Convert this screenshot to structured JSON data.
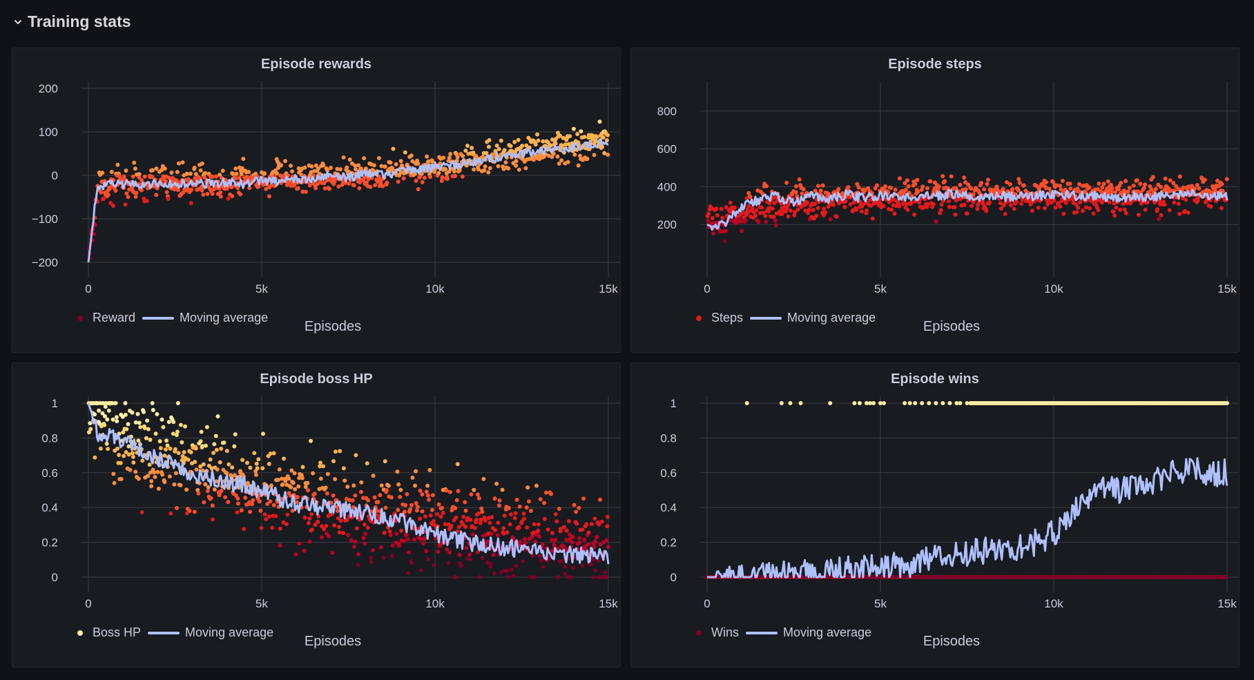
{
  "section": {
    "title": "Training stats"
  },
  "colors": {
    "background": "#111217",
    "panel": "#181b1f",
    "grid": "#3a3d44",
    "moving_average": "#aec0ff",
    "scale": [
      "#800026",
      "#bd0026",
      "#e31a1c",
      "#fc4e2a",
      "#fd8d3c",
      "#feb24c",
      "#fed976",
      "#ffeda0"
    ]
  },
  "panels": [
    {
      "title": "Episode rewards",
      "legend": {
        "series": "Reward",
        "avg": "Moving average",
        "dot_color": "#800026"
      },
      "x_title": "Episodes"
    },
    {
      "title": "Episode steps",
      "legend": {
        "series": "Steps",
        "avg": "Moving average",
        "dot_color": "#e31a1c"
      },
      "x_title": "Episodes"
    },
    {
      "title": "Episode boss HP",
      "legend": {
        "series": "Boss HP",
        "avg": "Moving average",
        "dot_color": "#ffeda0"
      },
      "x_title": "Episodes"
    },
    {
      "title": "Episode wins",
      "legend": {
        "series": "Wins",
        "avg": "Moving average",
        "dot_color": "#800026"
      },
      "x_title": "Episodes"
    }
  ],
  "chart_data": [
    {
      "type": "scatter",
      "title": "Episode rewards",
      "xlabel": "Episodes",
      "ylabel": "",
      "xlim": [
        0,
        15000
      ],
      "ylim": [
        -200,
        200
      ],
      "x_ticks": [
        0,
        5000,
        10000,
        15000
      ],
      "x_tick_labels": [
        "0",
        "5k",
        "10k",
        "15k"
      ],
      "y_ticks": [
        -200,
        -100,
        0,
        100,
        200
      ],
      "y_tick_labels": [
        "−200",
        "−100",
        "0",
        "100",
        "200"
      ],
      "grid": true,
      "legend_position": "bottom-left",
      "series": [
        {
          "name": "Reward",
          "kind": "points",
          "color_scale": "value",
          "trend": {
            "x": [
              0,
              300,
              1500,
              5000,
              7500,
              10000,
              12500,
              15000
            ],
            "y": [
              -200,
              -25,
              -20,
              -10,
              0,
              20,
              50,
              80
            ]
          },
          "spread": 45,
          "count": 850
        },
        {
          "name": "Moving average",
          "kind": "line",
          "color": "#aec0ff",
          "x": [
            0,
            100,
            200,
            300,
            600,
            1000,
            1500,
            2000,
            2500,
            3000,
            3500,
            4000,
            4500,
            5000,
            5500,
            6000,
            6500,
            7000,
            7500,
            8000,
            8500,
            9000,
            9500,
            10000,
            10500,
            11000,
            11500,
            12000,
            12500,
            13000,
            13500,
            14000,
            14500,
            15000
          ],
          "y": [
            -200,
            -130,
            -60,
            -25,
            -22,
            -20,
            -22,
            -18,
            -22,
            -18,
            -20,
            -15,
            -20,
            -10,
            -15,
            -8,
            -10,
            0,
            -5,
            5,
            0,
            10,
            12,
            20,
            22,
            30,
            38,
            45,
            50,
            55,
            60,
            65,
            70,
            80
          ],
          "noise": 10
        }
      ]
    },
    {
      "type": "scatter",
      "title": "Episode steps",
      "xlabel": "Episodes",
      "ylabel": "",
      "xlim": [
        0,
        15000
      ],
      "ylim": [
        0,
        920
      ],
      "x_ticks": [
        0,
        5000,
        10000,
        15000
      ],
      "x_tick_labels": [
        "0",
        "5k",
        "10k",
        "15k"
      ],
      "y_ticks": [
        200,
        400,
        600,
        800
      ],
      "y_tick_labels": [
        "200",
        "400",
        "600",
        "800"
      ],
      "grid": true,
      "legend_position": "bottom-left",
      "series": [
        {
          "name": "Steps",
          "kind": "points",
          "color_scale": "value",
          "trend": {
            "x": [
              0,
              500,
              1500,
              3000,
              5000,
              10000,
              15000
            ],
            "y": [
              200,
              230,
              300,
              330,
              340,
              350,
              360
            ]
          },
          "spread": 110,
          "count": 900
        },
        {
          "name": "Moving average",
          "kind": "line",
          "color": "#aec0ff",
          "x": [
            0,
            250,
            500,
            1000,
            1500,
            2000,
            2500,
            3000,
            3500,
            4000,
            4500,
            5000,
            6000,
            7000,
            8000,
            9000,
            10000,
            11000,
            12000,
            13000,
            14000,
            15000
          ],
          "y": [
            200,
            180,
            210,
            300,
            330,
            350,
            310,
            350,
            330,
            360,
            340,
            350,
            340,
            360,
            345,
            350,
            355,
            350,
            345,
            350,
            360,
            350
          ],
          "noise": 25
        }
      ]
    },
    {
      "type": "scatter",
      "title": "Episode boss HP",
      "xlabel": "Episodes",
      "ylabel": "",
      "xlim": [
        0,
        15000
      ],
      "ylim": [
        0,
        1
      ],
      "x_ticks": [
        0,
        5000,
        10000,
        15000
      ],
      "x_tick_labels": [
        "0",
        "5k",
        "10k",
        "15k"
      ],
      "y_ticks": [
        0,
        0.2,
        0.4,
        0.6,
        0.8,
        1
      ],
      "y_tick_labels": [
        "0",
        "0.2",
        "0.4",
        "0.6",
        "0.8",
        "1"
      ],
      "grid": true,
      "legend_position": "bottom-left",
      "series": [
        {
          "name": "Boss HP",
          "kind": "points",
          "color_scale": "value",
          "trend": {
            "x": [
              0,
              1000,
              5000,
              10000,
              15000
            ],
            "y": [
              1,
              0.8,
              0.5,
              0.3,
              0.15
            ]
          },
          "spread": 0.35,
          "count": 900
        },
        {
          "name": "Moving average",
          "kind": "line",
          "color": "#aec0ff",
          "x": [
            0,
            300,
            1000,
            2000,
            3000,
            4000,
            5000,
            6000,
            7000,
            8000,
            9000,
            10000,
            11000,
            12000,
            13000,
            14000,
            15000
          ],
          "y": [
            1,
            0.82,
            0.78,
            0.68,
            0.6,
            0.55,
            0.5,
            0.42,
            0.4,
            0.37,
            0.32,
            0.25,
            0.2,
            0.17,
            0.15,
            0.13,
            0.12
          ],
          "noise": 0.05
        }
      ]
    },
    {
      "type": "scatter",
      "title": "Episode wins",
      "xlabel": "Episodes",
      "ylabel": "",
      "xlim": [
        0,
        15000
      ],
      "ylim": [
        0,
        1
      ],
      "x_ticks": [
        0,
        5000,
        10000,
        15000
      ],
      "x_tick_labels": [
        "0",
        "5k",
        "10k",
        "15k"
      ],
      "y_ticks": [
        0,
        0.2,
        0.4,
        0.6,
        0.8,
        1
      ],
      "y_tick_labels": [
        "0",
        "0.2",
        "0.4",
        "0.6",
        "0.8",
        "1"
      ],
      "grid": true,
      "legend_position": "bottom-left",
      "series": [
        {
          "name": "Wins",
          "kind": "binary",
          "win_x": [
            1150,
            2150,
            2400,
            2700,
            3550,
            4250,
            4400,
            4600,
            4700,
            4800,
            5000,
            5100,
            5700,
            5850,
            6000,
            6200,
            6400,
            6600,
            6800,
            7000,
            7200,
            7300,
            7500
          ],
          "dense_from": 7600,
          "dense_to": 15000
        },
        {
          "name": "Moving average",
          "kind": "line",
          "color": "#aec0ff",
          "x": [
            0,
            1000,
            2000,
            3000,
            3500,
            4000,
            5000,
            6000,
            7000,
            8000,
            9000,
            9500,
            10000,
            10500,
            11000,
            11500,
            12000,
            12500,
            13000,
            13500,
            14000,
            14500,
            15000
          ],
          "y": [
            0,
            0,
            0.01,
            0.02,
            0.03,
            0.04,
            0.05,
            0.08,
            0.12,
            0.15,
            0.18,
            0.2,
            0.25,
            0.35,
            0.45,
            0.5,
            0.5,
            0.55,
            0.55,
            0.6,
            0.65,
            0.6,
            0.6
          ],
          "noise": 0.08
        }
      ]
    }
  ]
}
